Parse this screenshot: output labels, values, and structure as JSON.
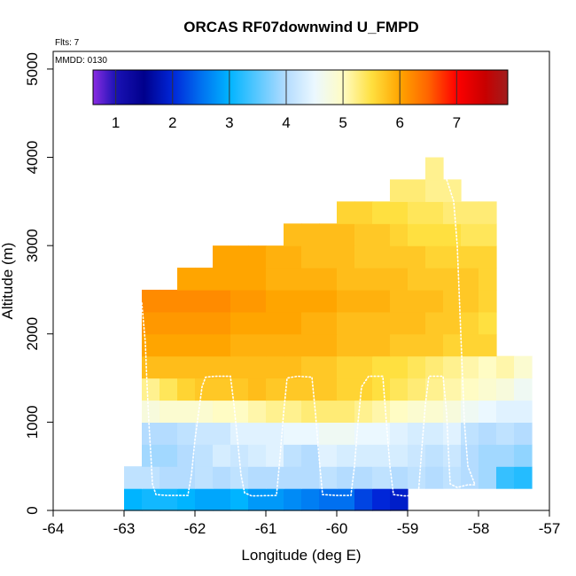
{
  "chart_data": {
    "type": "heatmap",
    "title": "ORCAS RF07downwind U_FMPD",
    "xlabel": "Longitude (deg E)",
    "ylabel": "Altitude (m)",
    "xlim": [
      -64,
      -57
    ],
    "ylim": [
      0,
      5200
    ],
    "x_ticks": [
      -64,
      -63,
      -62,
      -61,
      -60,
      -59,
      -58,
      -57
    ],
    "y_ticks": [
      0,
      1000,
      2000,
      3000,
      4000,
      5000
    ],
    "flights_note": "Flts: 7",
    "date_note": "MMDD: 0130",
    "colorbar": {
      "range": [
        0.6,
        7.9
      ],
      "ticks": [
        1,
        2,
        3,
        4,
        5,
        6,
        7
      ],
      "stops": [
        [
          0.6,
          "#8a2be2"
        ],
        [
          1.0,
          "#1a12b4"
        ],
        [
          1.5,
          "#00008c"
        ],
        [
          2.0,
          "#0026d8"
        ],
        [
          2.5,
          "#0070f0"
        ],
        [
          3.0,
          "#00b4ff"
        ],
        [
          3.5,
          "#5ac8ff"
        ],
        [
          4.0,
          "#b4dcff"
        ],
        [
          4.5,
          "#ebf8ff"
        ],
        [
          5.0,
          "#fffcc4"
        ],
        [
          5.5,
          "#ffe040"
        ],
        [
          6.0,
          "#ffa500"
        ],
        [
          6.5,
          "#ff6400"
        ],
        [
          7.0,
          "#ff0000"
        ],
        [
          7.5,
          "#c80000"
        ],
        [
          7.9,
          "#a01e1e"
        ]
      ]
    },
    "cell_size": {
      "lon": 0.25,
      "alt_m": 250
    },
    "rows": [
      {
        "alt": 0,
        "lon_start": -63.0,
        "values": [
          3.0,
          3.1,
          3.1,
          3.0,
          2.9,
          2.9,
          3.0,
          2.8,
          2.8,
          2.7,
          2.6,
          2.5,
          2.5,
          2.2,
          2.0,
          1.9
        ]
      },
      {
        "alt": 250,
        "lon_start": -63.0,
        "values": [
          4.1,
          4.1,
          4.0,
          4.0,
          4.1,
          4.0,
          4.1,
          4.0,
          4.0,
          4.0,
          4.0,
          4.1,
          4.0,
          4.0,
          4.1,
          4.0,
          4.1,
          4.0,
          4.1,
          4.0,
          3.9,
          3.3,
          3.2
        ]
      },
      {
        "alt": 500,
        "lon_start": -62.75,
        "values": [
          3.9,
          3.9,
          4.0,
          4.1,
          4.3,
          4.2,
          4.3,
          4.4,
          4.1,
          4.0,
          4.4,
          4.3,
          4.3,
          4.3,
          4.3,
          4.2,
          4.1,
          4.2,
          4.0,
          3.9,
          3.9,
          3.8
        ]
      },
      {
        "alt": 750,
        "lon_start": -62.75,
        "values": [
          4.0,
          4.0,
          4.1,
          4.2,
          4.2,
          4.4,
          4.4,
          4.4,
          4.5,
          4.5,
          4.6,
          4.6,
          4.5,
          4.5,
          4.4,
          4.3,
          4.3,
          4.4,
          4.1,
          4.0,
          4.1,
          4.0
        ]
      },
      {
        "alt": 1000,
        "lon_start": -62.75,
        "values": [
          4.8,
          4.9,
          4.9,
          4.9,
          5.0,
          5.0,
          5.1,
          5.2,
          5.2,
          5.3,
          5.3,
          5.3,
          5.2,
          5.1,
          5.0,
          4.9,
          4.9,
          4.8,
          4.6,
          4.5,
          4.4,
          4.4
        ]
      },
      {
        "alt": 1250,
        "lon_start": -62.75,
        "values": [
          5.2,
          5.4,
          5.6,
          5.7,
          5.7,
          5.7,
          5.8,
          5.7,
          5.7,
          5.7,
          5.7,
          5.6,
          5.6,
          5.5,
          5.4,
          5.3,
          5.2,
          5.1,
          5.0,
          4.9,
          4.8,
          4.6
        ]
      },
      {
        "alt": 1500,
        "lon_start": -62.75,
        "values": [
          5.8,
          5.8,
          5.8,
          5.8,
          5.8,
          5.8,
          5.8,
          5.8,
          5.8,
          5.7,
          5.7,
          5.6,
          5.6,
          5.5,
          5.5,
          5.4,
          5.3,
          5.2,
          5.1,
          5.0,
          5.1,
          4.9
        ]
      },
      {
        "alt": 1750,
        "lon_start": -62.75,
        "values": [
          6.0,
          6.0,
          6.0,
          6.0,
          6.0,
          5.9,
          5.9,
          5.9,
          5.9,
          5.9,
          5.9,
          5.8,
          5.8,
          5.8,
          5.7,
          5.7,
          5.7,
          5.6,
          5.6,
          5.6
        ]
      },
      {
        "alt": 2000,
        "lon_start": -62.75,
        "values": [
          6.1,
          6.1,
          6.1,
          6.1,
          6.1,
          6.0,
          6.0,
          6.0,
          6.0,
          5.9,
          5.9,
          5.8,
          5.8,
          5.8,
          5.8,
          5.8,
          5.7,
          5.7,
          5.6,
          5.5
        ]
      },
      {
        "alt": 2250,
        "lon_start": -62.75,
        "values": [
          6.2,
          6.2,
          6.2,
          6.2,
          6.2,
          6.1,
          6.1,
          6.0,
          6.0,
          6.0,
          6.0,
          5.9,
          5.9,
          5.9,
          5.8,
          5.8,
          5.8,
          5.7,
          5.7,
          5.6
        ]
      },
      {
        "alt": 2500,
        "lon_start": -62.25,
        "values": [
          6.0,
          6.0,
          6.0,
          6.0,
          6.0,
          5.9,
          5.9,
          5.9,
          5.9,
          5.8,
          5.8,
          5.8,
          5.8,
          5.7,
          5.7,
          5.7,
          5.7,
          5.6
        ]
      },
      {
        "alt": 2750,
        "lon_start": -61.75,
        "values": [
          6.0,
          6.0,
          6.0,
          5.9,
          5.9,
          5.8,
          5.8,
          5.8,
          5.7,
          5.7,
          5.7,
          5.7,
          5.6,
          5.6,
          5.6,
          5.6
        ]
      },
      {
        "alt": 3000,
        "lon_start": -60.75,
        "values": [
          5.8,
          5.8,
          5.8,
          5.8,
          5.7,
          5.7,
          5.6,
          5.5,
          5.5,
          5.5,
          5.4,
          5.4
        ]
      },
      {
        "alt": 3250,
        "lon_start": -60.0,
        "values": [
          5.6,
          5.6,
          5.5,
          5.5,
          5.4,
          5.4,
          5.3,
          5.3,
          5.3
        ]
      },
      {
        "alt": 3500,
        "lon_start": -59.25,
        "values": [
          5.3,
          5.3,
          5.2,
          5.2
        ]
      },
      {
        "alt": 3750,
        "lon_start": -58.75,
        "values": [
          5.2
        ]
      }
    ],
    "flight_track": [
      [
        -62.75,
        2350
      ],
      [
        -62.7,
        1900
      ],
      [
        -62.68,
        1500
      ],
      [
        -62.65,
        1000
      ],
      [
        -62.62,
        600
      ],
      [
        -62.6,
        300
      ],
      [
        -62.55,
        180
      ],
      [
        -62.4,
        170
      ],
      [
        -62.1,
        170
      ],
      [
        -62.05,
        400
      ],
      [
        -62.0,
        800
      ],
      [
        -61.95,
        1100
      ],
      [
        -61.9,
        1400
      ],
      [
        -61.85,
        1510
      ],
      [
        -61.7,
        1520
      ],
      [
        -61.5,
        1520
      ],
      [
        -61.45,
        1200
      ],
      [
        -61.4,
        800
      ],
      [
        -61.35,
        400
      ],
      [
        -61.3,
        200
      ],
      [
        -61.2,
        165
      ],
      [
        -60.85,
        170
      ],
      [
        -60.8,
        600
      ],
      [
        -60.75,
        1100
      ],
      [
        -60.7,
        1500
      ],
      [
        -60.55,
        1520
      ],
      [
        -60.35,
        1510
      ],
      [
        -60.3,
        1100
      ],
      [
        -60.25,
        600
      ],
      [
        -60.2,
        180
      ],
      [
        -60.0,
        170
      ],
      [
        -59.8,
        170
      ],
      [
        -59.75,
        500
      ],
      [
        -59.7,
        1000
      ],
      [
        -59.65,
        1400
      ],
      [
        -59.55,
        1520
      ],
      [
        -59.35,
        1520
      ],
      [
        -59.3,
        1000
      ],
      [
        -59.25,
        500
      ],
      [
        -59.2,
        180
      ],
      [
        -59.05,
        165
      ],
      [
        -58.85,
        170
      ],
      [
        -58.8,
        700
      ],
      [
        -58.75,
        1200
      ],
      [
        -58.7,
        1520
      ],
      [
        -58.5,
        1520
      ],
      [
        -58.45,
        1100
      ],
      [
        -58.42,
        600
      ],
      [
        -58.4,
        300
      ],
      [
        -58.3,
        260
      ],
      [
        -58.15,
        290
      ],
      [
        -58.05,
        290
      ],
      [
        -58.15,
        500
      ],
      [
        -58.2,
        1000
      ],
      [
        -58.25,
        2000
      ],
      [
        -58.3,
        3000
      ],
      [
        -58.35,
        3500
      ],
      [
        -58.45,
        3750
      ]
    ]
  }
}
